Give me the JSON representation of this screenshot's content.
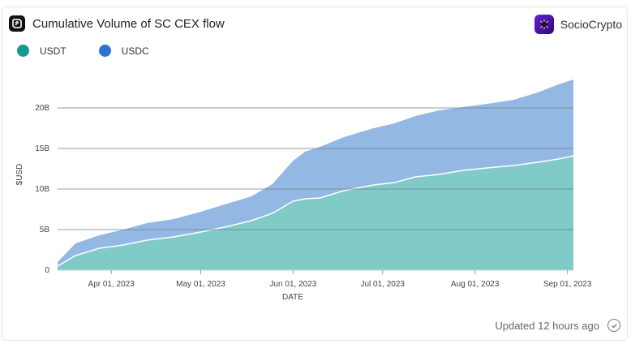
{
  "header": {
    "title": "Cumulative Volume of SC CEX flow",
    "brand": "SocioCrypto"
  },
  "footer": {
    "updated": "Updated 12 hours ago"
  },
  "icons": {
    "app_logo": "flipside-logo-icon",
    "brand_logo": "sociocrypto-logo-icon",
    "status": "check-circle-icon"
  },
  "chart_data": {
    "type": "area",
    "stacked": true,
    "xlabel": "DATE",
    "ylabel": "$USD",
    "ylim": [
      0,
      23500000000
    ],
    "yticks": [
      0,
      5000000000,
      10000000000,
      15000000000,
      20000000000
    ],
    "ytick_labels": [
      "0",
      "5B",
      "10B",
      "15B",
      "20B"
    ],
    "xticks": [
      "2023-04-01",
      "2023-05-01",
      "2023-06-01",
      "2023-07-01",
      "2023-08-01",
      "2023-09-01"
    ],
    "xtick_labels": [
      "Apr 01, 2023",
      "May 01, 2023",
      "Jun 01, 2023",
      "Jul 01, 2023",
      "Aug 01, 2023",
      "Sep 01, 2023"
    ],
    "grid": true,
    "legend_position": "top-left",
    "x": [
      "2023-03-14",
      "2023-03-20",
      "2023-03-28",
      "2023-04-05",
      "2023-04-13",
      "2023-04-22",
      "2023-05-01",
      "2023-05-09",
      "2023-05-18",
      "2023-05-25",
      "2023-06-01",
      "2023-06-05",
      "2023-06-10",
      "2023-06-18",
      "2023-06-28",
      "2023-07-05",
      "2023-07-12",
      "2023-07-20",
      "2023-07-28",
      "2023-08-05",
      "2023-08-14",
      "2023-08-22",
      "2023-08-29",
      "2023-09-03"
    ],
    "series": [
      {
        "name": "USDT",
        "color": "#80cbc7",
        "values": [
          0.5,
          1.8,
          2.7,
          3.1,
          3.7,
          4.1,
          4.7,
          5.3,
          6.1,
          7.0,
          8.5,
          8.8,
          8.9,
          9.8,
          10.5,
          10.8,
          11.5,
          11.8,
          12.3,
          12.6,
          12.9,
          13.3,
          13.7,
          14.1
        ]
      },
      {
        "name": "USDC",
        "color": "#94b8e4",
        "values": [
          0.5,
          1.5,
          1.6,
          1.9,
          2.1,
          2.2,
          2.5,
          2.8,
          3.0,
          3.6,
          5.0,
          5.8,
          6.3,
          6.6,
          7.0,
          7.3,
          7.5,
          7.9,
          7.8,
          7.9,
          8.1,
          8.6,
          9.2,
          9.4
        ]
      }
    ],
    "value_unit": "billion USD"
  }
}
